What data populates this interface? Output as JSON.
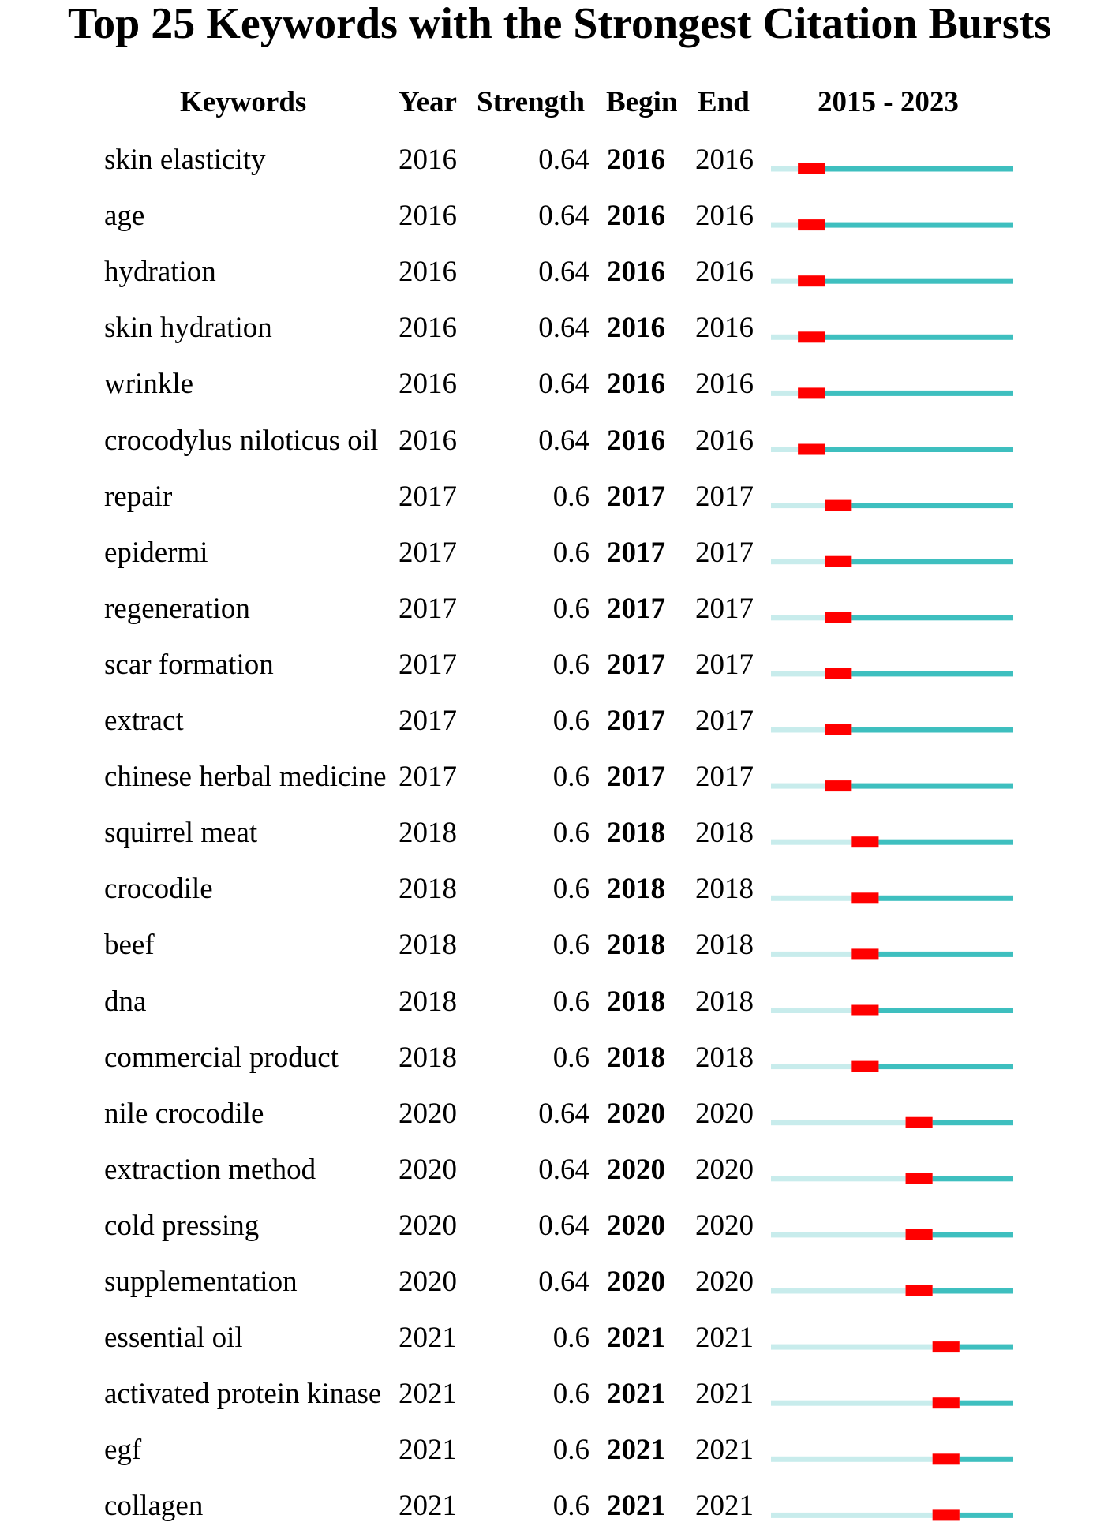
{
  "chart_data": {
    "type": "table",
    "title": "Top 25 Keywords with the Strongest Citation Bursts",
    "columns": [
      "Keywords",
      "Year",
      "Strength",
      "Begin",
      "End",
      "2015 - 2023"
    ],
    "timeline": {
      "start": 2015,
      "end": 2023,
      "colors": {
        "before": "#c8ecec",
        "after": "#3ebfbf",
        "burst": "#ff0000"
      }
    },
    "rows": [
      {
        "keyword": "skin elasticity",
        "year": "2016",
        "strength": "0.64",
        "begin": "2016",
        "end": "2016"
      },
      {
        "keyword": "age",
        "year": "2016",
        "strength": "0.64",
        "begin": "2016",
        "end": "2016"
      },
      {
        "keyword": "hydration",
        "year": "2016",
        "strength": "0.64",
        "begin": "2016",
        "end": "2016"
      },
      {
        "keyword": "skin hydration",
        "year": "2016",
        "strength": "0.64",
        "begin": "2016",
        "end": "2016"
      },
      {
        "keyword": "wrinkle",
        "year": "2016",
        "strength": "0.64",
        "begin": "2016",
        "end": "2016"
      },
      {
        "keyword": "crocodylus niloticus oil",
        "year": "2016",
        "strength": "0.64",
        "begin": "2016",
        "end": "2016"
      },
      {
        "keyword": "repair",
        "year": "2017",
        "strength": "0.6",
        "begin": "2017",
        "end": "2017"
      },
      {
        "keyword": "epidermi",
        "year": "2017",
        "strength": "0.6",
        "begin": "2017",
        "end": "2017"
      },
      {
        "keyword": "regeneration",
        "year": "2017",
        "strength": "0.6",
        "begin": "2017",
        "end": "2017"
      },
      {
        "keyword": "scar formation",
        "year": "2017",
        "strength": "0.6",
        "begin": "2017",
        "end": "2017"
      },
      {
        "keyword": "extract",
        "year": "2017",
        "strength": "0.6",
        "begin": "2017",
        "end": "2017"
      },
      {
        "keyword": "chinese herbal medicine",
        "year": "2017",
        "strength": "0.6",
        "begin": "2017",
        "end": "2017"
      },
      {
        "keyword": "squirrel meat",
        "year": "2018",
        "strength": "0.6",
        "begin": "2018",
        "end": "2018"
      },
      {
        "keyword": "crocodile",
        "year": "2018",
        "strength": "0.6",
        "begin": "2018",
        "end": "2018"
      },
      {
        "keyword": "beef",
        "year": "2018",
        "strength": "0.6",
        "begin": "2018",
        "end": "2018"
      },
      {
        "keyword": "dna",
        "year": "2018",
        "strength": "0.6",
        "begin": "2018",
        "end": "2018"
      },
      {
        "keyword": "commercial product",
        "year": "2018",
        "strength": "0.6",
        "begin": "2018",
        "end": "2018"
      },
      {
        "keyword": "nile crocodile",
        "year": "2020",
        "strength": "0.64",
        "begin": "2020",
        "end": "2020"
      },
      {
        "keyword": "extraction method",
        "year": "2020",
        "strength": "0.64",
        "begin": "2020",
        "end": "2020"
      },
      {
        "keyword": "cold pressing",
        "year": "2020",
        "strength": "0.64",
        "begin": "2020",
        "end": "2020"
      },
      {
        "keyword": "supplementation",
        "year": "2020",
        "strength": "0.64",
        "begin": "2020",
        "end": "2020"
      },
      {
        "keyword": "essential oil",
        "year": "2021",
        "strength": "0.6",
        "begin": "2021",
        "end": "2021"
      },
      {
        "keyword": "activated protein kinase",
        "year": "2021",
        "strength": "0.6",
        "begin": "2021",
        "end": "2021"
      },
      {
        "keyword": "egf",
        "year": "2021",
        "strength": "0.6",
        "begin": "2021",
        "end": "2021"
      },
      {
        "keyword": "collagen",
        "year": "2021",
        "strength": "0.6",
        "begin": "2021",
        "end": "2021"
      }
    ]
  }
}
